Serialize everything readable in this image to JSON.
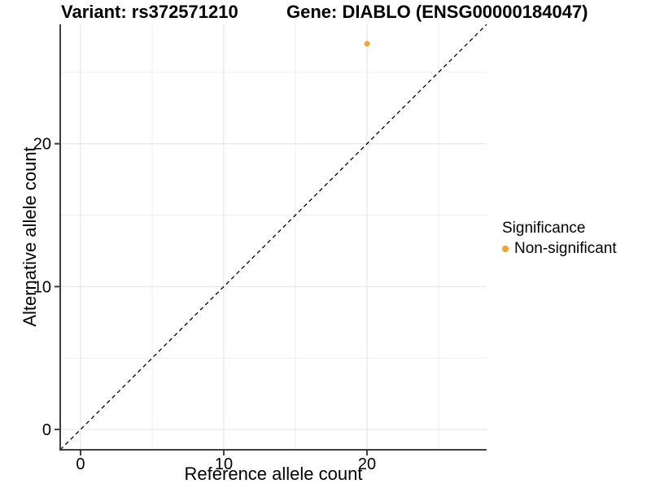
{
  "chart_data": {
    "type": "scatter",
    "titles": {
      "left": "Variant: rs372571210",
      "right": "Gene: DIABLO (ENSG00000184047)"
    },
    "xlabel": "Reference allele count",
    "ylabel": "Alternative allele count",
    "xlim": [
      -1.42,
      28.35
    ],
    "ylim": [
      -1.42,
      28.35
    ],
    "x_major_ticks": [
      0,
      10,
      20
    ],
    "y_major_ticks": [
      0,
      10,
      20
    ],
    "x_minor_ticks": [
      5,
      15,
      25
    ],
    "y_minor_ticks": [
      5,
      15,
      25
    ],
    "grid": "major+minor",
    "identity_line": {
      "slope": 1,
      "intercept": 0,
      "style": "dashed",
      "color": "#000000"
    },
    "series": [
      {
        "name": "Non-significant",
        "color": "#F9A02E",
        "points": [
          {
            "x": 20,
            "y": 27
          }
        ]
      }
    ],
    "legend": {
      "title": "Significance",
      "position": "right",
      "entries": [
        {
          "label": "Non-significant",
          "color": "#F9A02E"
        }
      ]
    }
  },
  "colors": {
    "background": "#FFFFFF",
    "axis_line": "#3F3F3F",
    "grid_major": "#E3E3E3",
    "grid_minor": "#EFEFEF",
    "text": "#000000",
    "point": "#F9A02E"
  }
}
